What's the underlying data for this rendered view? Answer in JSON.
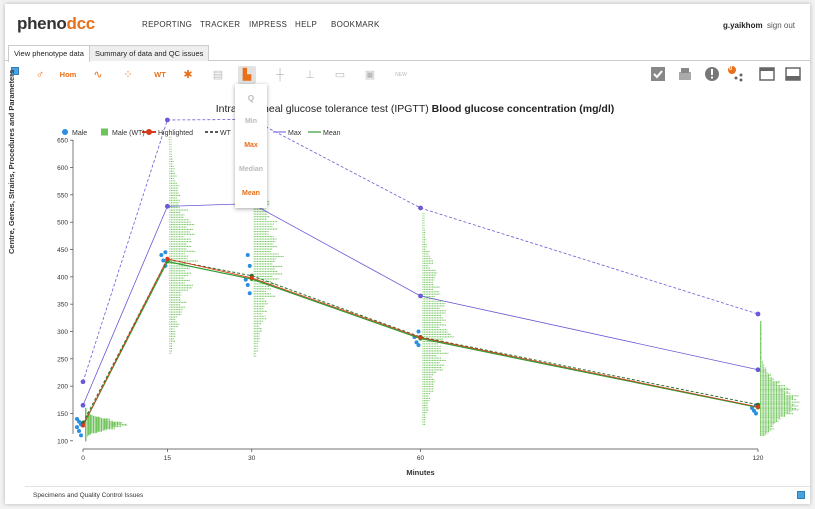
{
  "header": {
    "logo_main": "pheno",
    "logo_accent": "dcc",
    "nav": [
      "REPORTING",
      "TRACKER",
      "IMPRESS",
      "HELP",
      "BOOKMARK"
    ],
    "user": "g.yaikhom",
    "sign_out": "sign out"
  },
  "tabs": [
    "View phenotype data",
    "Summary of data and QC issues"
  ],
  "toolbar": {
    "hom_label": "Hom",
    "wt_label": "WT",
    "new_label": "NEW",
    "badge_count": "0"
  },
  "dropdown": {
    "items": [
      "Q",
      "Min",
      "Max",
      "Median",
      "Mean"
    ],
    "active_color": "#e8701a",
    "inactive_color": "#bbbbbb"
  },
  "sidebar": {
    "label": "Centre, Genes, Strains, Procedures and Parameters"
  },
  "footer": {
    "label": "Specimens and Quality Control Issues"
  },
  "colors": {
    "accent": "#e8701a",
    "male": "#2a8fe0",
    "wt": "#6fc35a",
    "highlighted": "#d93a1a",
    "max": "#6a5ad6",
    "mean": "#2f9a2f"
  },
  "chart_data": {
    "type": "line",
    "title_prefix": "Intraperitoneal glucose tolerance test (IPGTT)",
    "title_bold": "Blood glucose concentration (mg/dl)",
    "xlabel": "Minutes",
    "ylabel": "",
    "x": [
      0,
      15,
      30,
      60,
      120
    ],
    "xlim": [
      0,
      120
    ],
    "ylim": [
      85,
      665
    ],
    "yticks": [
      100,
      150,
      200,
      250,
      300,
      350,
      400,
      450,
      500,
      550,
      600,
      650
    ],
    "legend": [
      "Male",
      "Male (WT)",
      "Highlighted",
      "WT",
      "Max",
      "Mean"
    ],
    "series": [
      {
        "name": "Max",
        "style": "dashed",
        "values": [
          208,
          687,
          688,
          526,
          332
        ]
      },
      {
        "name": "Max",
        "style": "solid",
        "values": [
          165,
          529,
          534,
          365,
          230
        ]
      },
      {
        "name": "Mean",
        "style": "solid",
        "values": [
          128,
          428,
          396,
          287,
          161
        ]
      },
      {
        "name": "WT",
        "style": "dashed",
        "values": [
          133,
          432,
          402,
          290,
          166
        ]
      },
      {
        "name": "Highlighted",
        "style": "solid",
        "values": [
          128,
          433,
          398,
          289,
          162
        ]
      }
    ]
  }
}
